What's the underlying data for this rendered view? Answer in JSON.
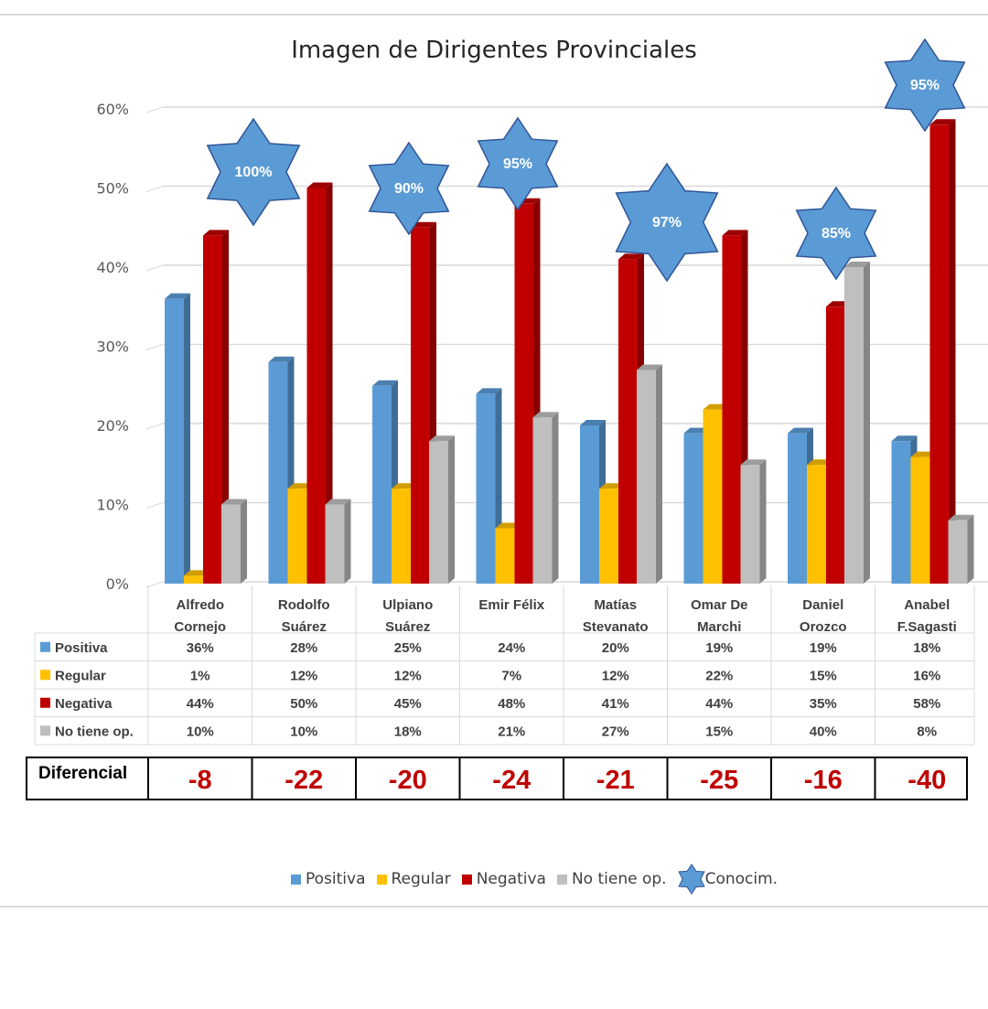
{
  "chart_data": {
    "type": "bar",
    "title": "Imagen de Dirigentes Provinciales",
    "ylim": [
      0,
      60
    ],
    "yticks": [
      "0%",
      "10%",
      "20%",
      "30%",
      "40%",
      "50%",
      "60%"
    ],
    "categories": [
      [
        "Alfredo",
        "Cornejo"
      ],
      [
        "Rodolfo",
        "Suárez"
      ],
      [
        "Ulpiano",
        "Suárez"
      ],
      [
        "Emir Félix",
        ""
      ],
      [
        "Matías",
        "Stevanato"
      ],
      [
        "Omar De",
        "Marchi"
      ],
      [
        "Daniel",
        "Orozco"
      ],
      [
        "Anabel",
        "F.Sagasti"
      ]
    ],
    "series": [
      {
        "name": "Positiva",
        "color": "#5b9bd5",
        "values": [
          36,
          28,
          25,
          24,
          20,
          19,
          19,
          18
        ],
        "labels": [
          "36%",
          "28%",
          "25%",
          "24%",
          "20%",
          "19%",
          "19%",
          "18%"
        ]
      },
      {
        "name": "Regular",
        "color": "#ffc000",
        "values": [
          1,
          12,
          12,
          7,
          12,
          22,
          15,
          16
        ],
        "labels": [
          "1%",
          "12%",
          "12%",
          "7%",
          "12%",
          "22%",
          "15%",
          "16%"
        ]
      },
      {
        "name": "Negativa",
        "color": "#c00000",
        "values": [
          44,
          50,
          45,
          48,
          41,
          44,
          35,
          58
        ],
        "labels": [
          "44%",
          "50%",
          "45%",
          "48%",
          "41%",
          "44%",
          "35%",
          "58%"
        ]
      },
      {
        "name": "No tiene op.",
        "color": "#bfbfbf",
        "values": [
          10,
          10,
          18,
          21,
          27,
          15,
          40,
          8
        ],
        "labels": [
          "10%",
          "10%",
          "18%",
          "21%",
          "27%",
          "15%",
          "40%",
          "8%"
        ]
      }
    ],
    "conocimiento": {
      "name": "Conocim.",
      "color": "#5b9bd5",
      "values": [
        100,
        90,
        95,
        97,
        85,
        95
      ],
      "labels": [
        "100%",
        "90%",
        "95%",
        "97%",
        "85%",
        "95%"
      ],
      "category_index": [
        0,
        2,
        3,
        5,
        6,
        7
      ]
    },
    "diferencial": {
      "label": "Diferencial",
      "values": [
        "-8",
        "-22",
        "-20",
        "-24",
        "-21",
        "-25",
        "-16",
        "-40"
      ],
      "color": "#c00000"
    },
    "legend_position": "bottom"
  }
}
